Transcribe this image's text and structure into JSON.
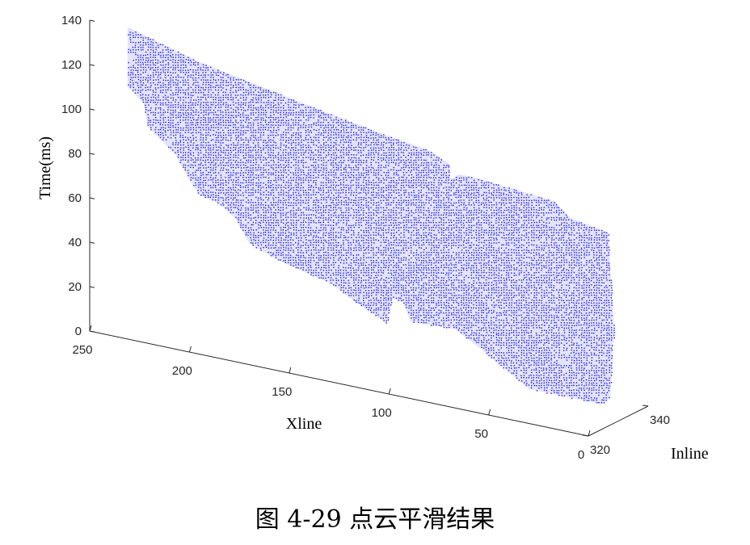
{
  "caption": "图 4-29  点云平滑结果",
  "chart_data": {
    "type": "scatter",
    "subtype": "3d-point-cloud",
    "xlabel": "Xline",
    "ylabel": "Inline",
    "zlabel": "Time(ms)",
    "xlim": [
      0,
      250
    ],
    "ylim": [
      320,
      340
    ],
    "zlim": [
      0,
      140
    ],
    "x_ticks": [
      "0",
      "50",
      "100",
      "150",
      "200",
      "250"
    ],
    "y_ticks": [
      "320",
      "340"
    ],
    "z_ticks": [
      "0",
      "20",
      "40",
      "60",
      "80",
      "100",
      "120",
      "140"
    ],
    "point_color": "#1a1adc",
    "surface_outline": [
      {
        "x": 246,
        "z": 131
      },
      {
        "x": 230,
        "z": 127
      },
      {
        "x": 210,
        "z": 122
      },
      {
        "x": 180,
        "z": 117
      },
      {
        "x": 150,
        "z": 112
      },
      {
        "x": 118,
        "z": 107
      },
      {
        "x": 95,
        "z": 104
      },
      {
        "x": 85,
        "z": 100
      },
      {
        "x": 84,
        "z": 93
      },
      {
        "x": 80,
        "z": 96
      },
      {
        "x": 70,
        "z": 96
      },
      {
        "x": 32,
        "z": 93
      },
      {
        "x": 24,
        "z": 87
      },
      {
        "x": 5,
        "z": 84
      },
      {
        "x": 2,
        "z": 40
      },
      {
        "x": 4,
        "z": 10
      },
      {
        "x": 8,
        "z": 6
      },
      {
        "x": 45,
        "z": 6
      },
      {
        "x": 70,
        "z": 20
      },
      {
        "x": 82,
        "z": 26
      },
      {
        "x": 104,
        "z": 25
      },
      {
        "x": 108,
        "z": 33
      },
      {
        "x": 113,
        "z": 34
      },
      {
        "x": 116,
        "z": 22
      },
      {
        "x": 130,
        "z": 28
      },
      {
        "x": 145,
        "z": 35
      },
      {
        "x": 170,
        "z": 40
      },
      {
        "x": 185,
        "z": 45
      },
      {
        "x": 192,
        "z": 55
      },
      {
        "x": 200,
        "z": 60
      },
      {
        "x": 210,
        "z": 62
      },
      {
        "x": 215,
        "z": 68
      },
      {
        "x": 222,
        "z": 78
      },
      {
        "x": 236,
        "z": 88
      },
      {
        "x": 238,
        "z": 98
      },
      {
        "x": 246,
        "z": 104
      }
    ]
  }
}
